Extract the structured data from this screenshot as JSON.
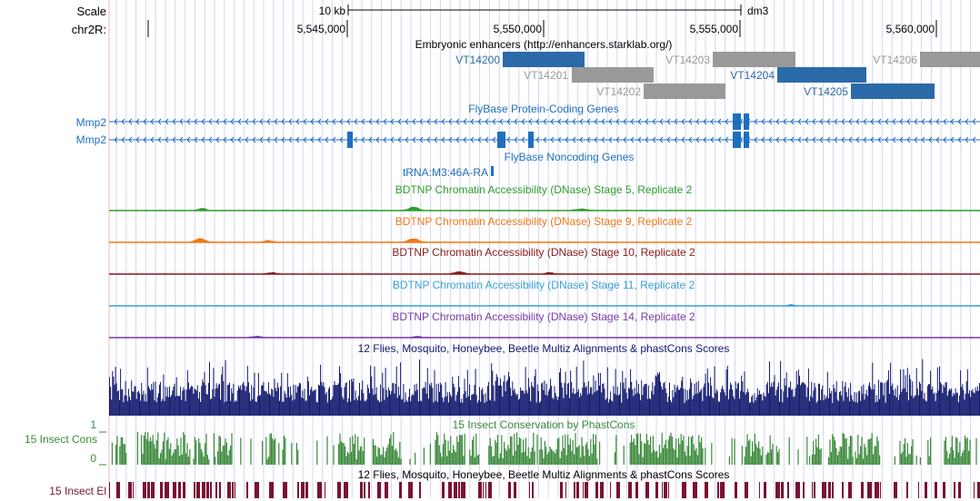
{
  "ruler": {
    "scale_label": "Scale",
    "scale_bar_label": "10 kb",
    "assembly": "dm3",
    "chrom_label": "chr2R:",
    "positions": [
      "5,545,000",
      "5,550,000",
      "5,555,000",
      "5,560,000"
    ]
  },
  "tracks": {
    "enhancers": {
      "title": "Embryonic enhancers (http://enhancers.starklab.org/)",
      "items": [
        {
          "name": "VT14200",
          "color": "#2b6aa8"
        },
        {
          "name": "VT14201",
          "color": "#999999"
        },
        {
          "name": "VT14202",
          "color": "#999999"
        },
        {
          "name": "VT14203",
          "color": "#999999"
        },
        {
          "name": "VT14204",
          "color": "#2b6aa8"
        },
        {
          "name": "VT14205",
          "color": "#2b6aa8"
        },
        {
          "name": "VT14206",
          "color": "#999999"
        }
      ]
    },
    "protein_genes": {
      "title": "FlyBase Protein-Coding Genes",
      "color": "#1f6fbf",
      "genes": [
        "Mmp2",
        "Mmp2"
      ]
    },
    "noncoding_genes": {
      "title": "FlyBase Noncoding Genes",
      "color": "#1f6fbf",
      "gene": "tRNA:M3:46A-RA"
    },
    "dnase": [
      {
        "title": "BDTNP Chromatin Accessibility (DNase) Stage 5, Replicate 2",
        "color": "#2e9e2e"
      },
      {
        "title": "BDTNP Chromatin Accessibility (DNase) Stage 9, Replicate 2",
        "color": "#f07818"
      },
      {
        "title": "BDTNP Chromatin Accessibility (DNase) Stage 10, Replicate 2",
        "color": "#8b1a1a"
      },
      {
        "title": "BDTNP Chromatin Accessibility (DNase) Stage 11, Replicate 2",
        "color": "#3aa0d8"
      },
      {
        "title": "BDTNP Chromatin Accessibility (DNase) Stage 14, Replicate 2",
        "color": "#7a3aa8"
      }
    ],
    "multiz": {
      "title": "12 Flies, Mosquito, Honeybee, Beetle Multiz Alignments & phastCons Scores",
      "color": "#121a6e"
    },
    "phastcons": {
      "title": "15 Insect Conservation by PhastCons",
      "side_label": "15 Insect Cons",
      "axis_top": "1",
      "axis_bottom": "0",
      "color": "#3a8a3a"
    },
    "elements": {
      "title": "12 Flies, Mosquito, Honeybee, Beetle Multiz Alignments & phastCons Scores",
      "side_label": "15 Insect El",
      "color": "#7a1233"
    }
  }
}
